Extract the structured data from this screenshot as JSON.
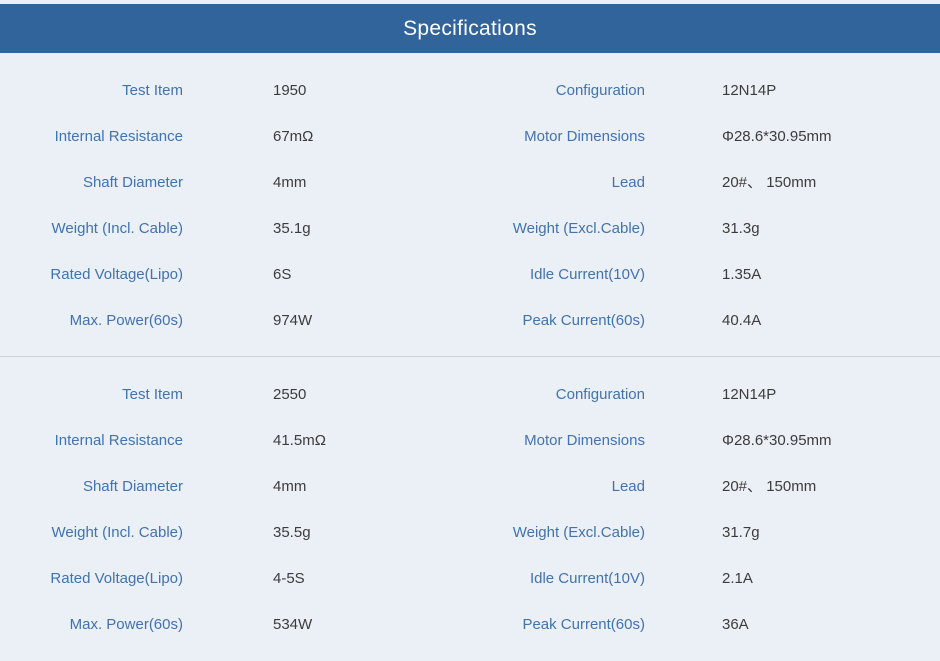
{
  "page": {
    "title": "Specifications",
    "colors": {
      "header_bg": "#31649b",
      "header_text": "#ffffff",
      "page_bg": "#ebeff6",
      "label_text": "#4173ac",
      "value_text": "#3c3c3c",
      "divider": "#cbd0d9"
    }
  },
  "sections": [
    {
      "rows": [
        {
          "label_left": "Test Item",
          "value_left": "1950",
          "label_right": "Configuration",
          "value_right": "12N14P"
        },
        {
          "label_left": "Internal Resistance",
          "value_left": "67mΩ",
          "label_right": "Motor Dimensions",
          "value_right": "Φ28.6*30.95mm"
        },
        {
          "label_left": "Shaft Diameter",
          "value_left": "4mm",
          "label_right": "Lead",
          "value_right": "20#、 150mm"
        },
        {
          "label_left": "Weight (Incl. Cable)",
          "value_left": "35.1g",
          "label_right": "Weight (Excl.Cable)",
          "value_right": "31.3g"
        },
        {
          "label_left": "Rated Voltage(Lipo)",
          "value_left": "6S",
          "label_right": "Idle Current(10V)",
          "value_right": "1.35A"
        },
        {
          "label_left": "Max. Power(60s)",
          "value_left": "974W",
          "label_right": "Peak Current(60s)",
          "value_right": "40.4A"
        }
      ]
    },
    {
      "rows": [
        {
          "label_left": "Test Item",
          "value_left": "2550",
          "label_right": "Configuration",
          "value_right": "12N14P"
        },
        {
          "label_left": "Internal Resistance",
          "value_left": "41.5mΩ",
          "label_right": "Motor Dimensions",
          "value_right": "Φ28.6*30.95mm"
        },
        {
          "label_left": "Shaft Diameter",
          "value_left": "4mm",
          "label_right": "Lead",
          "value_right": "20#、 150mm"
        },
        {
          "label_left": "Weight (Incl. Cable)",
          "value_left": "35.5g",
          "label_right": "Weight (Excl.Cable)",
          "value_right": "31.7g"
        },
        {
          "label_left": "Rated Voltage(Lipo)",
          "value_left": "4-5S",
          "label_right": "Idle Current(10V)",
          "value_right": "2.1A"
        },
        {
          "label_left": "Max. Power(60s)",
          "value_left": "534W",
          "label_right": "Peak Current(60s)",
          "value_right": "36A"
        }
      ]
    }
  ]
}
